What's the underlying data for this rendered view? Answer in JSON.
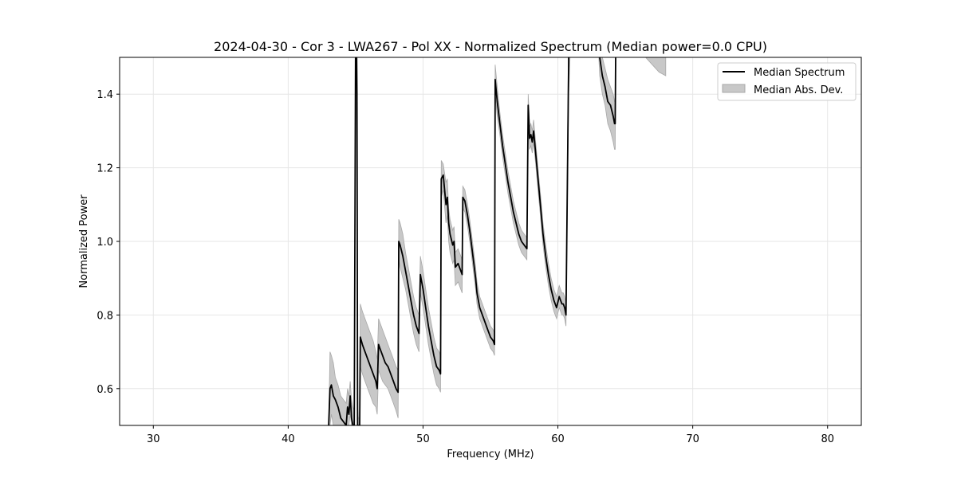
{
  "chart_data": {
    "type": "line",
    "title": "2024-04-30 - Cor 3 - LWA267 - Pol XX - Normalized Spectrum (Median power=0.0 CPU)",
    "xlabel": "Frequency (MHz)",
    "ylabel": "Normalized Power",
    "xlim": [
      27.5,
      82.5
    ],
    "ylim": [
      0.5,
      1.5
    ],
    "xticks": [
      30,
      40,
      50,
      60,
      70,
      80
    ],
    "yticks": [
      0.6,
      0.8,
      1.0,
      1.2,
      1.4
    ],
    "grid": true,
    "legend": {
      "location": "upper right",
      "entries": [
        "Median Spectrum",
        "Median Abs. Dev."
      ]
    },
    "colors": {
      "line": "#000000",
      "band_fill": "#c8c8c8",
      "band_edge": "#a8a8a8",
      "grid": "#e6e6e6"
    },
    "series": [
      {
        "name": "Median Spectrum",
        "x": [
          43.0,
          43.1,
          43.2,
          43.35,
          43.5,
          43.7,
          43.9,
          44.1,
          44.3,
          44.4,
          44.5,
          44.6,
          44.7,
          44.8,
          44.9,
          45.0,
          45.05,
          45.1,
          45.15,
          45.2,
          45.3,
          45.35,
          45.5,
          45.7,
          45.9,
          46.1,
          46.3,
          46.5,
          46.6,
          46.7,
          46.8,
          47.0,
          47.2,
          47.4,
          47.6,
          47.8,
          48.0,
          48.15,
          48.2,
          48.3,
          48.5,
          48.7,
          48.9,
          49.1,
          49.3,
          49.5,
          49.7,
          49.8,
          49.85,
          50.0,
          50.2,
          50.4,
          50.6,
          50.8,
          51.0,
          51.2,
          51.3,
          51.35,
          51.5,
          51.7,
          51.8,
          51.9,
          52.0,
          52.2,
          52.3,
          52.4,
          52.6,
          52.8,
          52.9,
          52.95,
          53.1,
          53.3,
          53.5,
          53.7,
          53.9,
          54.0,
          54.2,
          54.4,
          54.6,
          54.8,
          55.0,
          55.2,
          55.3,
          55.35,
          55.5,
          55.7,
          55.9,
          56.1,
          56.3,
          56.5,
          56.7,
          56.9,
          57.1,
          57.3,
          57.5,
          57.7,
          57.8,
          57.85,
          57.9,
          58.0,
          58.1,
          58.2,
          58.3,
          58.5,
          58.7,
          58.9,
          59.1,
          59.3,
          59.5,
          59.7,
          59.9,
          60.1,
          60.3,
          60.4,
          60.5,
          60.6,
          60.8,
          61.0,
          61.05,
          61.1,
          61.3,
          61.5,
          61.7,
          61.9,
          62.1,
          62.3,
          62.5,
          62.7,
          62.9,
          63.1,
          63.3,
          63.5,
          63.7,
          63.9,
          64.1,
          64.2,
          64.25,
          64.3,
          64.5,
          64.7
        ],
        "y": [
          0.5,
          0.6,
          0.61,
          0.58,
          0.57,
          0.55,
          0.52,
          0.51,
          0.5,
          0.55,
          0.53,
          0.58,
          0.52,
          0.5,
          0.5,
          1.55,
          1.6,
          1.4,
          0.5,
          0.5,
          0.5,
          0.74,
          0.72,
          0.7,
          0.68,
          0.66,
          0.64,
          0.62,
          0.6,
          0.72,
          0.71,
          0.69,
          0.67,
          0.66,
          0.64,
          0.62,
          0.6,
          0.59,
          1.0,
          0.99,
          0.96,
          0.92,
          0.88,
          0.84,
          0.8,
          0.77,
          0.75,
          0.91,
          0.9,
          0.87,
          0.82,
          0.77,
          0.73,
          0.69,
          0.66,
          0.65,
          0.64,
          1.17,
          1.18,
          1.1,
          1.12,
          1.05,
          1.02,
          0.99,
          1.0,
          0.93,
          0.94,
          0.92,
          0.91,
          1.12,
          1.11,
          1.07,
          1.02,
          0.96,
          0.9,
          0.86,
          0.82,
          0.8,
          0.78,
          0.76,
          0.74,
          0.73,
          0.72,
          1.44,
          1.38,
          1.32,
          1.26,
          1.21,
          1.16,
          1.12,
          1.08,
          1.05,
          1.02,
          1.0,
          0.99,
          0.98,
          1.37,
          1.33,
          1.28,
          1.29,
          1.27,
          1.3,
          1.26,
          1.18,
          1.1,
          1.02,
          0.96,
          0.91,
          0.87,
          0.84,
          0.82,
          0.85,
          0.83,
          0.83,
          0.82,
          0.8,
          1.5,
          1.6,
          1.6,
          1.6,
          1.6,
          1.6,
          1.6,
          1.6,
          1.6,
          1.6,
          1.6,
          1.6,
          1.6,
          1.5,
          1.45,
          1.42,
          1.38,
          1.37,
          1.34,
          1.32,
          1.32,
          1.6,
          1.6,
          1.6
        ]
      },
      {
        "name": "Median Abs. Dev.",
        "x": [
          43.0,
          43.1,
          43.2,
          43.35,
          43.5,
          43.7,
          43.9,
          44.1,
          44.3,
          44.4,
          44.5,
          44.6,
          44.7,
          44.8,
          44.9,
          45.0,
          45.05,
          45.1,
          45.15,
          45.2,
          45.3,
          45.35,
          45.5,
          45.7,
          45.9,
          46.1,
          46.3,
          46.5,
          46.6,
          46.7,
          46.8,
          47.0,
          47.2,
          47.4,
          47.6,
          47.8,
          48.0,
          48.15,
          48.2,
          48.3,
          48.5,
          48.7,
          48.9,
          49.1,
          49.3,
          49.5,
          49.7,
          49.8,
          49.85,
          50.0,
          50.2,
          50.4,
          50.6,
          50.8,
          51.0,
          51.2,
          51.3,
          51.35,
          51.5,
          51.7,
          51.8,
          51.9,
          52.0,
          52.2,
          52.3,
          52.4,
          52.6,
          52.8,
          52.9,
          52.95,
          53.1,
          53.3,
          53.5,
          53.7,
          53.9,
          54.0,
          54.2,
          54.4,
          54.6,
          54.8,
          55.0,
          55.2,
          55.3,
          55.35,
          55.5,
          55.7,
          55.9,
          56.1,
          56.3,
          56.5,
          56.7,
          56.9,
          57.1,
          57.3,
          57.5,
          57.7,
          57.8,
          57.85,
          57.9,
          58.0,
          58.1,
          58.2,
          58.3,
          58.5,
          58.7,
          58.9,
          59.1,
          59.3,
          59.5,
          59.7,
          59.9,
          60.1,
          60.3,
          60.4,
          60.5,
          60.6,
          60.8,
          61.0,
          61.05,
          61.1,
          61.3,
          61.5,
          61.7,
          61.9,
          62.1,
          62.3,
          62.5,
          62.7,
          62.9,
          63.1,
          63.3,
          63.5,
          63.7,
          63.9,
          64.1,
          64.2,
          64.25,
          64.3,
          64.5,
          64.7
        ],
        "upper": [
          0.5,
          0.7,
          0.69,
          0.67,
          0.63,
          0.61,
          0.58,
          0.57,
          0.56,
          0.6,
          0.58,
          0.62,
          0.57,
          0.55,
          0.54,
          1.6,
          1.6,
          1.6,
          0.55,
          0.52,
          0.52,
          0.83,
          0.81,
          0.79,
          0.77,
          0.75,
          0.73,
          0.7,
          0.68,
          0.79,
          0.78,
          0.76,
          0.74,
          0.72,
          0.7,
          0.68,
          0.66,
          0.65,
          1.06,
          1.05,
          1.02,
          0.97,
          0.93,
          0.89,
          0.85,
          0.82,
          0.8,
          0.96,
          0.95,
          0.92,
          0.87,
          0.82,
          0.78,
          0.74,
          0.71,
          0.7,
          0.69,
          1.22,
          1.21,
          1.16,
          1.17,
          1.09,
          1.06,
          1.03,
          1.04,
          0.97,
          0.98,
          0.96,
          0.95,
          1.15,
          1.14,
          1.1,
          1.05,
          0.99,
          0.93,
          0.89,
          0.85,
          0.83,
          0.81,
          0.79,
          0.77,
          0.76,
          0.75,
          1.48,
          1.42,
          1.35,
          1.29,
          1.24,
          1.19,
          1.15,
          1.11,
          1.08,
          1.05,
          1.03,
          1.02,
          1.01,
          1.4,
          1.36,
          1.31,
          1.32,
          1.3,
          1.33,
          1.29,
          1.21,
          1.13,
          1.05,
          0.99,
          0.94,
          0.9,
          0.87,
          0.85,
          0.88,
          0.86,
          0.86,
          0.85,
          0.83,
          1.6,
          1.6,
          1.6,
          1.6,
          1.6,
          1.6,
          1.6,
          1.6,
          1.6,
          1.6,
          1.6,
          1.6,
          1.6,
          1.55,
          1.5,
          1.47,
          1.44,
          1.42,
          1.4,
          1.38,
          1.38,
          1.6,
          1.6,
          1.6
        ],
        "lower": [
          0.5,
          0.5,
          0.53,
          0.5,
          0.5,
          0.5,
          0.5,
          0.5,
          0.5,
          0.5,
          0.5,
          0.53,
          0.5,
          0.5,
          0.5,
          1.5,
          1.5,
          1.2,
          0.5,
          0.5,
          0.5,
          0.66,
          0.64,
          0.62,
          0.6,
          0.58,
          0.56,
          0.55,
          0.53,
          0.65,
          0.64,
          0.62,
          0.61,
          0.6,
          0.58,
          0.56,
          0.54,
          0.52,
          0.95,
          0.93,
          0.9,
          0.87,
          0.83,
          0.79,
          0.75,
          0.72,
          0.7,
          0.86,
          0.85,
          0.82,
          0.77,
          0.72,
          0.68,
          0.64,
          0.61,
          0.6,
          0.59,
          1.12,
          1.14,
          1.05,
          1.07,
          1.0,
          0.97,
          0.94,
          0.95,
          0.88,
          0.89,
          0.87,
          0.86,
          1.09,
          1.08,
          1.04,
          0.99,
          0.93,
          0.87,
          0.83,
          0.79,
          0.77,
          0.75,
          0.73,
          0.71,
          0.7,
          0.69,
          1.4,
          1.34,
          1.29,
          1.23,
          1.18,
          1.13,
          1.09,
          1.05,
          1.02,
          0.99,
          0.97,
          0.96,
          0.95,
          1.34,
          1.3,
          1.25,
          1.26,
          1.24,
          1.27,
          1.23,
          1.15,
          1.07,
          0.99,
          0.93,
          0.88,
          0.84,
          0.81,
          0.79,
          0.82,
          0.8,
          0.8,
          0.79,
          0.77,
          1.4,
          1.6,
          1.6,
          1.6,
          1.6,
          1.6,
          1.6,
          1.6,
          1.6,
          1.6,
          1.6,
          1.6,
          1.6,
          1.45,
          1.4,
          1.37,
          1.32,
          1.3,
          1.27,
          1.25,
          1.25,
          1.6,
          1.6,
          1.6
        ]
      }
    ],
    "extra_band": {
      "x": [
        65.0,
        65.5,
        66.0,
        66.5,
        67.0,
        67.5,
        68.0
      ],
      "upper": [
        1.6,
        1.6,
        1.6,
        1.6,
        1.6,
        1.6,
        1.6
      ],
      "lower": [
        1.5,
        1.51,
        1.52,
        1.5,
        1.48,
        1.46,
        1.45
      ]
    }
  }
}
